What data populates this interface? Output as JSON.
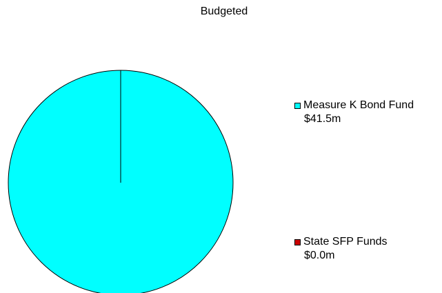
{
  "chart_data": {
    "type": "pie",
    "title": "Budgeted",
    "series": [
      {
        "name": "Measure K Bond Fund",
        "value_label": "$41.5m",
        "value": 41.5,
        "color": "#00ffff"
      },
      {
        "name": "State SFP Funds",
        "value_label": "$0.0m",
        "value": 0.0,
        "color": "#cc0000"
      }
    ],
    "legend_position": "right"
  }
}
